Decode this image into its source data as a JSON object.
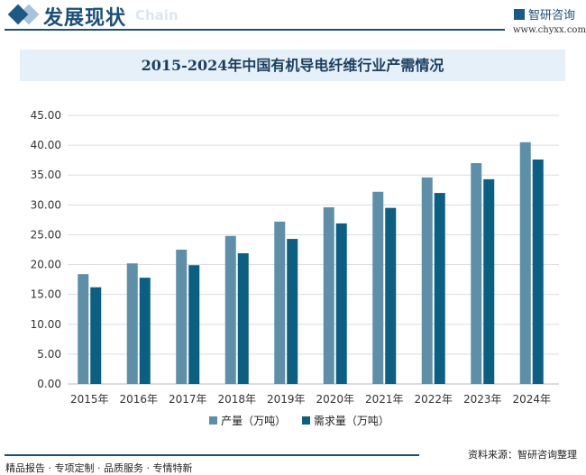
{
  "header": {
    "title": "发展现状",
    "subtitle": "Chain",
    "brand": "智研咨询",
    "url": "www.chyxx.com"
  },
  "footer": {
    "left": "精品报告 · 专项定制 · 品质服务 · 专情特新",
    "source": "资料来源：智研咨询整理"
  },
  "colors": {
    "production": "#5e8fa8",
    "demand": "#0a5f82"
  },
  "chart_data": {
    "type": "bar",
    "title": "2015-2024年中国有机导电纤维行业产需情况",
    "categories": [
      "2015年",
      "2016年",
      "2017年",
      "2018年",
      "2019年",
      "2020年",
      "2021年",
      "2022年",
      "2023年",
      "2024年"
    ],
    "series": [
      {
        "name": "产量（万吨）",
        "values": [
          18.4,
          20.2,
          22.5,
          24.8,
          27.2,
          29.6,
          32.2,
          34.6,
          37.0,
          40.5
        ]
      },
      {
        "name": "需求量（万吨）",
        "values": [
          16.2,
          17.8,
          19.9,
          21.9,
          24.3,
          26.9,
          29.5,
          32.0,
          34.3,
          37.6
        ]
      }
    ],
    "yticks": [
      "0.00",
      "5.00",
      "10.00",
      "15.00",
      "20.00",
      "25.00",
      "30.00",
      "35.00",
      "40.00",
      "45.00"
    ],
    "ylim": [
      0,
      45
    ],
    "xlabel": "",
    "ylabel": "",
    "grid": true,
    "legend": "bottom"
  }
}
